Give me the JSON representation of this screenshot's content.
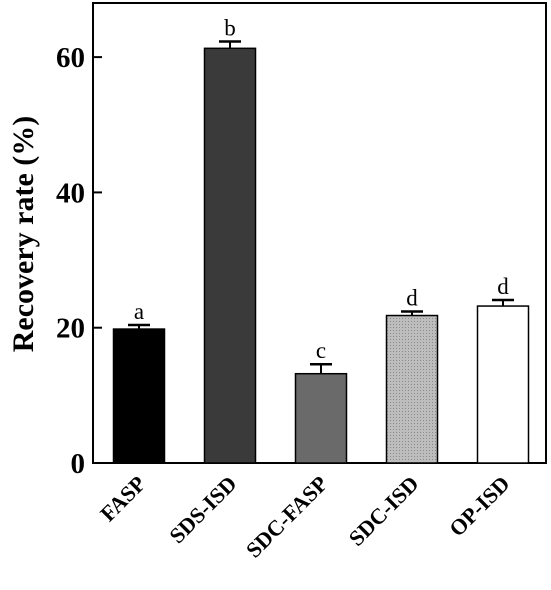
{
  "chart_data": {
    "type": "bar",
    "title": "",
    "xlabel": "",
    "ylabel": "Recovery rate (%)",
    "ylim": [
      0,
      68
    ],
    "yticks": [
      0,
      20,
      40,
      60
    ],
    "categories": [
      "FASP",
      "SDS-ISD",
      "SDC-FASP",
      "SDC-ISD",
      "OP-ISD"
    ],
    "values": [
      19.8,
      61.3,
      13.2,
      21.8,
      23.2
    ],
    "errors": [
      0.6,
      1.0,
      1.4,
      0.6,
      0.9
    ],
    "significance": [
      "a",
      "b",
      "c",
      "d",
      "d"
    ],
    "bar_colors": [
      "#000000",
      "#3a3a3a",
      "#6a6a6a",
      "#b2b2b2",
      "#ffffff"
    ],
    "grid": false,
    "legend": "none"
  }
}
